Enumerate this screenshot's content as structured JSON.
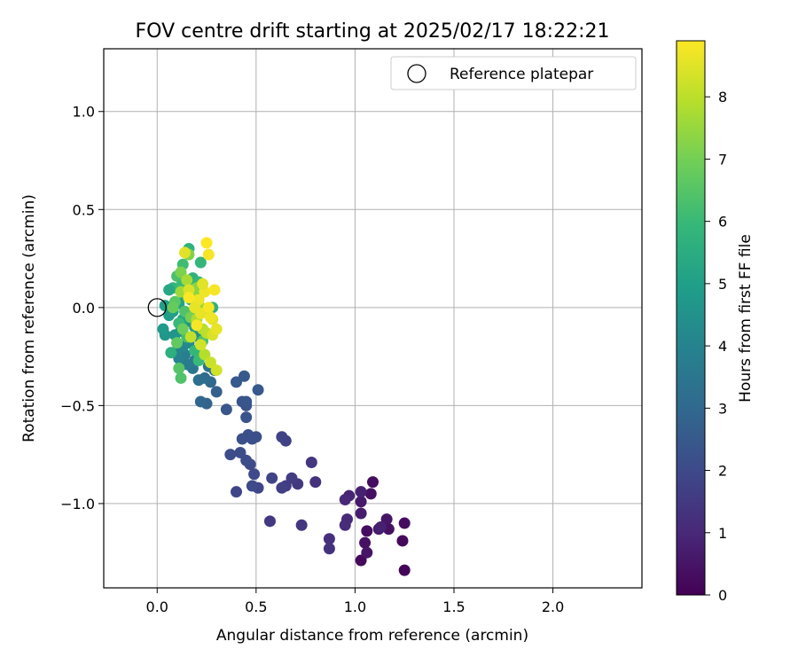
{
  "chart_data": {
    "type": "scatter",
    "title": "FOV centre drift starting at 2025/02/17 18:22:21",
    "xlabel": "Angular distance from reference (arcmin)",
    "ylabel": "Rotation from reference (arcmin)",
    "xlim": [
      -0.27,
      2.45
    ],
    "ylim": [
      -1.43,
      1.32
    ],
    "xticks": [
      0.0,
      0.5,
      1.0,
      1.5,
      2.0
    ],
    "xtick_labels": [
      "0.0",
      "0.5",
      "1.0",
      "1.5",
      "2.0"
    ],
    "yticks": [
      -1.0,
      -0.5,
      0.0,
      0.5,
      1.0
    ],
    "ytick_labels": [
      "−1.0",
      "−0.5",
      "0.0",
      "0.5",
      "1.0"
    ],
    "grid": true,
    "legend": {
      "placement": "top-right",
      "entries": [
        "Reference platepar"
      ]
    },
    "reference_point": {
      "x": 0.0,
      "y": 0.0
    },
    "colorbar": {
      "label": "Hours from first FF file",
      "range": [
        0,
        8.9
      ],
      "ticks": [
        0,
        1,
        2,
        3,
        4,
        5,
        6,
        7,
        8
      ],
      "tick_labels": [
        "0",
        "1",
        "2",
        "3",
        "4",
        "5",
        "6",
        "7",
        "8"
      ],
      "colormap": "viridis",
      "colors": [
        "#440154",
        "#482878",
        "#3e4989",
        "#31688e",
        "#26828e",
        "#1f9e89",
        "#35b779",
        "#6ece58",
        "#b5de2b",
        "#fde725"
      ]
    },
    "points": [
      [
        1.25,
        -1.34,
        0.1
      ],
      [
        1.03,
        -1.29,
        0.2
      ],
      [
        1.24,
        -1.19,
        0.2
      ],
      [
        1.25,
        -1.1,
        0.3
      ],
      [
        1.17,
        -1.13,
        0.4
      ],
      [
        1.16,
        -1.08,
        0.5
      ],
      [
        1.12,
        -1.13,
        0.6
      ],
      [
        1.13,
        -1.12,
        0.8
      ],
      [
        1.06,
        -1.14,
        0.3
      ],
      [
        1.05,
        -1.2,
        0.4
      ],
      [
        1.06,
        -1.25,
        0.5
      ],
      [
        1.03,
        -1.05,
        0.7
      ],
      [
        1.03,
        -0.99,
        0.6
      ],
      [
        1.08,
        -0.95,
        0.4
      ],
      [
        1.09,
        -0.89,
        0.3
      ],
      [
        1.03,
        -0.94,
        0.8
      ],
      [
        0.97,
        -0.96,
        0.9
      ],
      [
        0.95,
        -0.98,
        1.0
      ],
      [
        0.96,
        -1.08,
        1.0
      ],
      [
        0.95,
        -1.11,
        1.1
      ],
      [
        0.87,
        -1.18,
        1.2
      ],
      [
        0.87,
        -1.23,
        1.3
      ],
      [
        0.8,
        -0.89,
        1.3
      ],
      [
        0.78,
        -0.79,
        1.4
      ],
      [
        0.73,
        -1.11,
        1.4
      ],
      [
        0.71,
        -0.9,
        1.5
      ],
      [
        0.68,
        -0.87,
        1.6
      ],
      [
        0.65,
        -0.91,
        1.6
      ],
      [
        0.63,
        -0.92,
        1.7
      ],
      [
        0.65,
        -0.68,
        1.7
      ],
      [
        0.63,
        -0.66,
        1.8
      ],
      [
        0.58,
        -0.87,
        1.8
      ],
      [
        0.57,
        -1.09,
        1.5
      ],
      [
        0.51,
        -0.92,
        1.9
      ],
      [
        0.48,
        -0.91,
        2.0
      ],
      [
        0.49,
        -0.85,
        2.0
      ],
      [
        0.47,
        -0.8,
        2.0
      ],
      [
        0.45,
        -0.78,
        2.1
      ],
      [
        0.42,
        -0.74,
        2.1
      ],
      [
        0.37,
        -0.75,
        2.1
      ],
      [
        0.4,
        -0.94,
        1.9
      ],
      [
        0.5,
        -0.66,
        2.2
      ],
      [
        0.48,
        -0.67,
        2.2
      ],
      [
        0.46,
        -0.65,
        2.2
      ],
      [
        0.43,
        -0.67,
        2.2
      ],
      [
        0.45,
        -0.56,
        2.3
      ],
      [
        0.45,
        -0.5,
        2.3
      ],
      [
        0.43,
        -0.48,
        2.3
      ],
      [
        0.45,
        -0.48,
        2.4
      ],
      [
        0.35,
        -0.52,
        2.4
      ],
      [
        0.4,
        -0.38,
        2.5
      ],
      [
        0.44,
        -0.35,
        2.5
      ],
      [
        0.51,
        -0.42,
        2.5
      ],
      [
        0.3,
        -0.43,
        2.7
      ],
      [
        0.25,
        -0.49,
        2.8
      ],
      [
        0.22,
        -0.48,
        2.9
      ],
      [
        0.27,
        -0.38,
        3.0
      ],
      [
        0.24,
        -0.36,
        3.1
      ],
      [
        0.21,
        -0.37,
        3.2
      ],
      [
        0.29,
        -0.32,
        3.3
      ],
      [
        0.26,
        -0.3,
        3.4
      ],
      [
        0.18,
        -0.31,
        3.5
      ],
      [
        0.19,
        -0.27,
        3.6
      ],
      [
        0.15,
        -0.29,
        3.7
      ],
      [
        0.14,
        -0.24,
        3.8
      ],
      [
        0.11,
        -0.26,
        3.9
      ],
      [
        0.1,
        -0.22,
        4.0
      ],
      [
        0.13,
        -0.2,
        4.1
      ],
      [
        0.16,
        -0.18,
        4.2
      ],
      [
        0.21,
        -0.15,
        4.3
      ],
      [
        0.23,
        -0.12,
        4.4
      ],
      [
        0.12,
        -0.12,
        4.5
      ],
      [
        0.09,
        -0.14,
        4.6
      ],
      [
        0.04,
        -0.14,
        4.7
      ],
      [
        0.03,
        -0.11,
        4.8
      ],
      [
        0.06,
        -0.04,
        4.9
      ],
      [
        0.04,
        0.01,
        5.0
      ],
      [
        0.08,
        -0.02,
        5.0
      ],
      [
        0.11,
        0.02,
        5.1
      ],
      [
        0.14,
        0.06,
        5.2
      ],
      [
        0.17,
        0.04,
        5.3
      ],
      [
        0.2,
        0.02,
        5.4
      ],
      [
        0.25,
        -0.02,
        5.5
      ],
      [
        0.28,
        0.0,
        5.6
      ],
      [
        0.16,
        -0.07,
        4.6
      ],
      [
        0.19,
        -0.1,
        4.9
      ],
      [
        0.13,
        -0.06,
        5.2
      ],
      [
        0.15,
        0.13,
        5.5
      ],
      [
        0.18,
        0.15,
        5.7
      ],
      [
        0.21,
        0.13,
        5.9
      ],
      [
        0.16,
        0.3,
        5.7
      ],
      [
        0.22,
        0.23,
        5.9
      ],
      [
        0.13,
        0.22,
        6.1
      ],
      [
        0.1,
        0.16,
        6.3
      ],
      [
        0.08,
        0.1,
        5.8
      ],
      [
        0.06,
        0.09,
        5.3
      ],
      [
        0.12,
        0.11,
        6.0
      ],
      [
        0.19,
        0.07,
        6.2
      ],
      [
        0.14,
        -0.02,
        6.4
      ],
      [
        0.09,
        0.03,
        6.6
      ],
      [
        0.08,
        0.0,
        6.8
      ],
      [
        0.11,
        -0.08,
        6.0
      ],
      [
        0.15,
        -0.15,
        6.2
      ],
      [
        0.19,
        -0.22,
        5.9
      ],
      [
        0.21,
        -0.27,
        6.0
      ],
      [
        0.23,
        -0.17,
        6.3
      ],
      [
        0.11,
        -0.31,
        6.5
      ],
      [
        0.12,
        -0.36,
        6.4
      ],
      [
        0.07,
        -0.23,
        5.6
      ],
      [
        0.1,
        -0.18,
        6.7
      ],
      [
        0.13,
        -0.11,
        6.9
      ],
      [
        0.17,
        -0.05,
        7.0
      ],
      [
        0.12,
        0.18,
        7.1
      ],
      [
        0.16,
        0.27,
        7.2
      ],
      [
        0.2,
        0.1,
        7.3
      ],
      [
        0.18,
        0.05,
        7.4
      ],
      [
        0.22,
        0.0,
        7.5
      ],
      [
        0.12,
        0.08,
        7.6
      ],
      [
        0.15,
        0.14,
        7.7
      ],
      [
        0.2,
        -0.06,
        7.8
      ],
      [
        0.23,
        -0.11,
        7.9
      ],
      [
        0.25,
        -0.13,
        8.0
      ],
      [
        0.17,
        -0.15,
        8.1
      ],
      [
        0.24,
        -0.24,
        7.9
      ],
      [
        0.27,
        -0.28,
        8.2
      ],
      [
        0.3,
        -0.32,
        8.3
      ],
      [
        0.28,
        -0.14,
        8.4
      ],
      [
        0.28,
        -0.06,
        8.5
      ],
      [
        0.3,
        -0.11,
        8.6
      ],
      [
        0.22,
        -0.03,
        8.6
      ],
      [
        0.21,
        0.04,
        8.7
      ],
      [
        0.24,
        0.08,
        8.7
      ],
      [
        0.29,
        0.09,
        8.8
      ],
      [
        0.26,
        0.27,
        8.8
      ],
      [
        0.25,
        0.33,
        8.9
      ],
      [
        0.14,
        0.28,
        8.5
      ],
      [
        0.16,
        0.09,
        8.4
      ],
      [
        0.19,
        0.0,
        8.6
      ],
      [
        0.26,
        0.0,
        8.8
      ],
      [
        0.27,
        -0.05,
        8.7
      ],
      [
        0.22,
        -0.19,
        8.3
      ],
      [
        0.23,
        0.12,
        8.5
      ],
      [
        0.2,
        -0.09,
        8.8
      ],
      [
        0.16,
        0.05,
        8.9
      ]
    ]
  }
}
